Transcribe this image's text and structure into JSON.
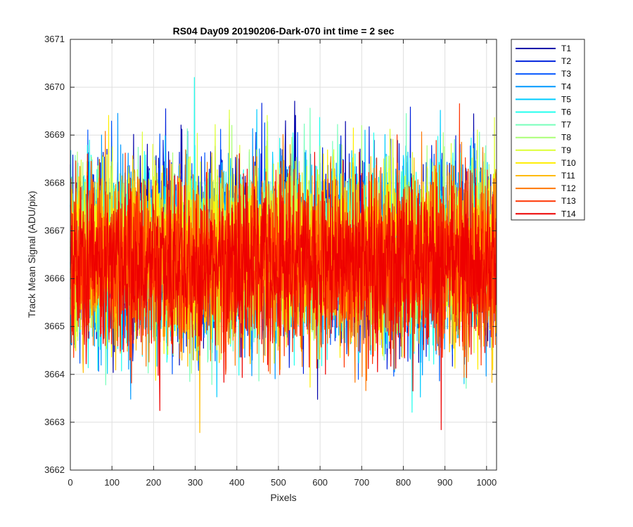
{
  "chart_data": {
    "type": "line",
    "title": "RS04 Day09 20190206-Dark-070 int time = 2 sec",
    "xlabel": "Pixels",
    "ylabel": "Track Mean Signal (ADU/pix)",
    "xlim": [
      0,
      1024
    ],
    "ylim": [
      3662,
      3671
    ],
    "xticks": [
      0,
      100,
      200,
      300,
      400,
      500,
      600,
      700,
      800,
      900,
      1000
    ],
    "yticks": [
      3662,
      3663,
      3664,
      3665,
      3666,
      3667,
      3668,
      3669,
      3670,
      3671
    ],
    "grid": true,
    "legend_position": "outside-top-right",
    "n_points": 1024,
    "noise_sigma": 0.9,
    "series": [
      {
        "name": "T1",
        "color": "#0000AA",
        "mean": 3666.6,
        "seed": 11
      },
      {
        "name": "T2",
        "color": "#0022DD",
        "mean": 3666.6,
        "seed": 23
      },
      {
        "name": "T3",
        "color": "#0055FF",
        "mean": 3666.5,
        "seed": 37
      },
      {
        "name": "T4",
        "color": "#0099FF",
        "mean": 3666.5,
        "seed": 41
      },
      {
        "name": "T5",
        "color": "#00CCFF",
        "mean": 3666.6,
        "seed": 53
      },
      {
        "name": "T6",
        "color": "#22FFEE",
        "mean": 3666.5,
        "seed": 67
      },
      {
        "name": "T7",
        "color": "#77FFBB",
        "mean": 3666.5,
        "seed": 71
      },
      {
        "name": "T8",
        "color": "#AAFF77",
        "mean": 3666.6,
        "seed": 83
      },
      {
        "name": "T9",
        "color": "#DDFF33",
        "mean": 3666.6,
        "seed": 97
      },
      {
        "name": "T10",
        "color": "#FFEE00",
        "mean": 3666.5,
        "seed": 101
      },
      {
        "name": "T11",
        "color": "#FFBB00",
        "mean": 3666.4,
        "seed": 113
      },
      {
        "name": "T12",
        "color": "#FF7700",
        "mean": 3666.4,
        "seed": 127
      },
      {
        "name": "T13",
        "color": "#FF3300",
        "mean": 3666.3,
        "seed": 131
      },
      {
        "name": "T14",
        "color": "#EE0000",
        "mean": 3666.3,
        "seed": 139
      }
    ],
    "notable_values": {
      "global_max": 3670.6,
      "global_min": 3662.6
    }
  }
}
